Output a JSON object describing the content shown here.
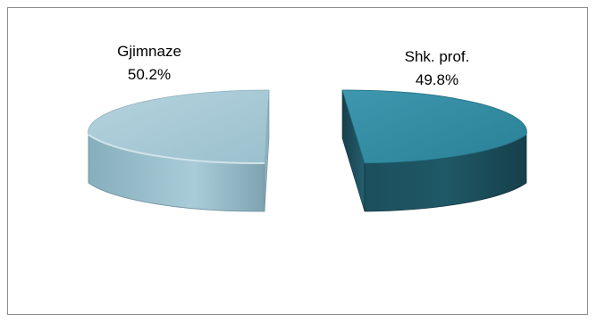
{
  "chart_data": {
    "type": "pie",
    "style": "3d-exploded",
    "slices": [
      {
        "label": "Gjimnaze",
        "percent_label": "50.2%",
        "value": 50.2,
        "color": "#9ec4d1"
      },
      {
        "label": "Shk. prof.",
        "percent_label": "49.8%",
        "value": 49.8,
        "color": "#2f8aa3"
      }
    ],
    "legend": "none"
  }
}
